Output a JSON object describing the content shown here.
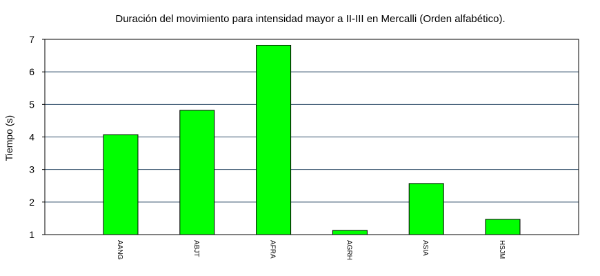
{
  "chart_data": {
    "type": "bar",
    "title": "Duración del movimiento para intensidad mayor a II-III en Mercalli (Orden alfabético).",
    "xlabel": "",
    "ylabel": "Tiempo (s)",
    "categories": [
      "AANG",
      "ABJT",
      "AFRA",
      "AGRH",
      "ASIA",
      "HSJM"
    ],
    "values": [
      4.07,
      4.82,
      6.82,
      1.13,
      2.57,
      1.47
    ],
    "ylim": [
      1,
      7
    ],
    "yticks": [
      1,
      2,
      3,
      4,
      5,
      6,
      7
    ],
    "grid": "horizontal",
    "bar_color": "#00ff00",
    "grid_color": "#2b4a66"
  }
}
